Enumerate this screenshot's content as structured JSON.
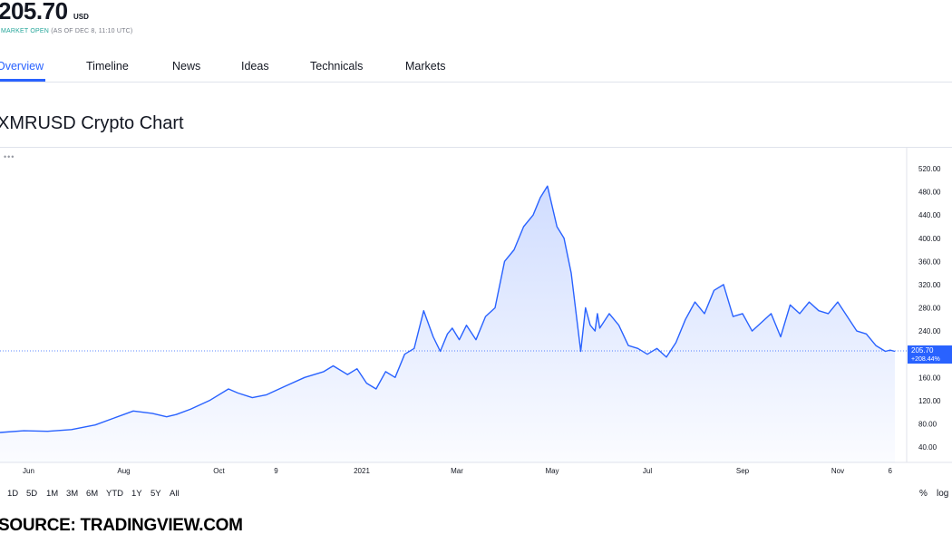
{
  "header": {
    "price": "205.70",
    "currency": "USD",
    "market_status": "MARKET OPEN",
    "as_of": "(AS OF DEC 8, 11:10 UTC)"
  },
  "tabs": [
    {
      "label": "Overview",
      "active": true
    },
    {
      "label": "Timeline"
    },
    {
      "label": "News"
    },
    {
      "label": "Ideas"
    },
    {
      "label": "Technicals"
    },
    {
      "label": "Markets"
    }
  ],
  "chart_title": "XMRUSD Crypto Chart",
  "chart_menu": "•••",
  "chart_data": {
    "type": "area",
    "title": "XMRUSD Crypto Chart",
    "xlabel": "",
    "ylabel": "",
    "ylim": [
      20,
      540
    ],
    "y_ticks": [
      520,
      480,
      440,
      400,
      360,
      320,
      280,
      240,
      200,
      160,
      120,
      80,
      40
    ],
    "x_ticks": [
      "Jun",
      "Aug",
      "Oct",
      "9",
      "2021",
      "Mar",
      "May",
      "Jul",
      "Sep",
      "Nov",
      "6"
    ],
    "x_tick_pos": [
      0.6,
      2.6,
      4.6,
      5.8,
      7.6,
      9.6,
      11.6,
      13.6,
      15.6,
      17.6,
      18.7
    ],
    "x_range": [
      0.0,
      20.0
    ],
    "grid": false,
    "color": "#2962ff",
    "last_price_label": "205.70",
    "change_label": "+208.44%",
    "x": [
      0.0,
      0.5,
      1.0,
      1.5,
      2.0,
      2.4,
      2.8,
      3.2,
      3.5,
      3.7,
      4.0,
      4.4,
      4.8,
      5.0,
      5.3,
      5.6,
      6.0,
      6.4,
      6.8,
      7.0,
      7.3,
      7.5,
      7.7,
      7.9,
      8.1,
      8.3,
      8.5,
      8.7,
      8.9,
      9.1,
      9.25,
      9.4,
      9.5,
      9.65,
      9.8,
      10.0,
      10.2,
      10.4,
      10.6,
      10.8,
      11.0,
      11.2,
      11.35,
      11.5,
      11.7,
      11.85,
      12.0,
      12.2,
      12.3,
      12.4,
      12.5,
      12.55,
      12.6,
      12.8,
      13.0,
      13.2,
      13.4,
      13.6,
      13.8,
      14.0,
      14.2,
      14.4,
      14.6,
      14.8,
      15.0,
      15.2,
      15.4,
      15.6,
      15.8,
      16.0,
      16.2,
      16.4,
      16.6,
      16.8,
      17.0,
      17.2,
      17.4,
      17.6,
      17.8,
      18.0,
      18.2,
      18.4,
      18.6,
      18.7,
      18.8
    ],
    "y": [
      65,
      68,
      67,
      70,
      78,
      90,
      102,
      98,
      92,
      96,
      105,
      120,
      140,
      133,
      125,
      130,
      145,
      160,
      170,
      180,
      165,
      175,
      150,
      140,
      170,
      160,
      200,
      210,
      275,
      230,
      205,
      235,
      245,
      225,
      250,
      225,
      265,
      280,
      360,
      380,
      420,
      440,
      470,
      490,
      420,
      400,
      340,
      205,
      280,
      250,
      240,
      270,
      245,
      270,
      250,
      215,
      210,
      200,
      210,
      195,
      220,
      260,
      290,
      270,
      310,
      320,
      265,
      270,
      240,
      255,
      270,
      230,
      285,
      270,
      290,
      275,
      270,
      290,
      265,
      240,
      235,
      215,
      205,
      207,
      205
    ]
  },
  "ranges": [
    "1D",
    "5D",
    "1M",
    "3M",
    "6M",
    "YTD",
    "1Y",
    "5Y",
    "All"
  ],
  "scale_buttons": [
    "%",
    "log"
  ],
  "source": "SOURCE: TRADINGVIEW.COM"
}
